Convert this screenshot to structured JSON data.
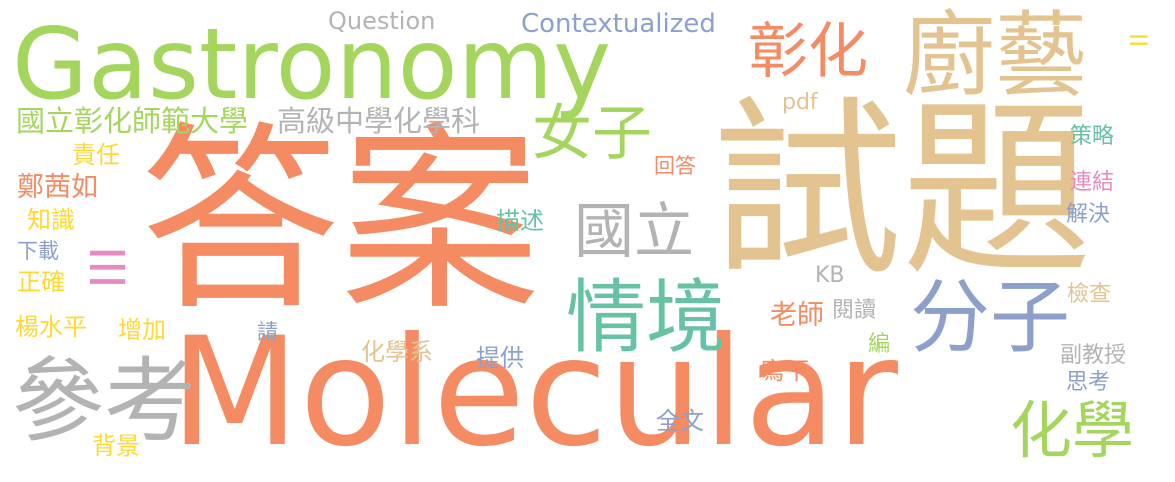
{
  "colors": {
    "orange": "#f58b62",
    "green": "#a4d65e",
    "tan": "#e3c38f",
    "gray": "#b3b3b3",
    "blue": "#8ca0cb",
    "teal": "#67c2a5",
    "yellow": "#ffd92f",
    "pink": "#e78ac3"
  },
  "words": {
    "gastronomy": "Gastronomy",
    "molecular": "Molecular",
    "answer": "答案",
    "exam_question": "試題",
    "culinary": "廚藝",
    "changhua": "彰化",
    "female": "女子",
    "national": "國立",
    "situation": "情境",
    "molecule": "分子",
    "reference": "參考",
    "chemistry": "化學",
    "ncue": "國立彰化師範大學",
    "senior_high_chem": "高級中學化學科",
    "question": "Question",
    "contextualized": "Contextualized",
    "pdf": "pdf",
    "kb": "KB",
    "ii": "II",
    "iii": "III",
    "responsibility": "責任",
    "person_name_1": "鄭茜如",
    "knowledge": "知識",
    "download": "下載",
    "correct": "正確",
    "person_name_2": "楊水平",
    "increase": "增加",
    "background": "背景",
    "please": "請",
    "chem_dept": "化學系",
    "provide": "提供",
    "describe": "描述",
    "reply": "回答",
    "teacher": "老師",
    "read": "閱讀",
    "write_down": "寫下",
    "edit": "編",
    "full_text": "全文",
    "strategy": "策略",
    "connect": "連結",
    "solve": "解決",
    "check": "檢查",
    "assoc_prof": "副教授",
    "think": "思考"
  }
}
